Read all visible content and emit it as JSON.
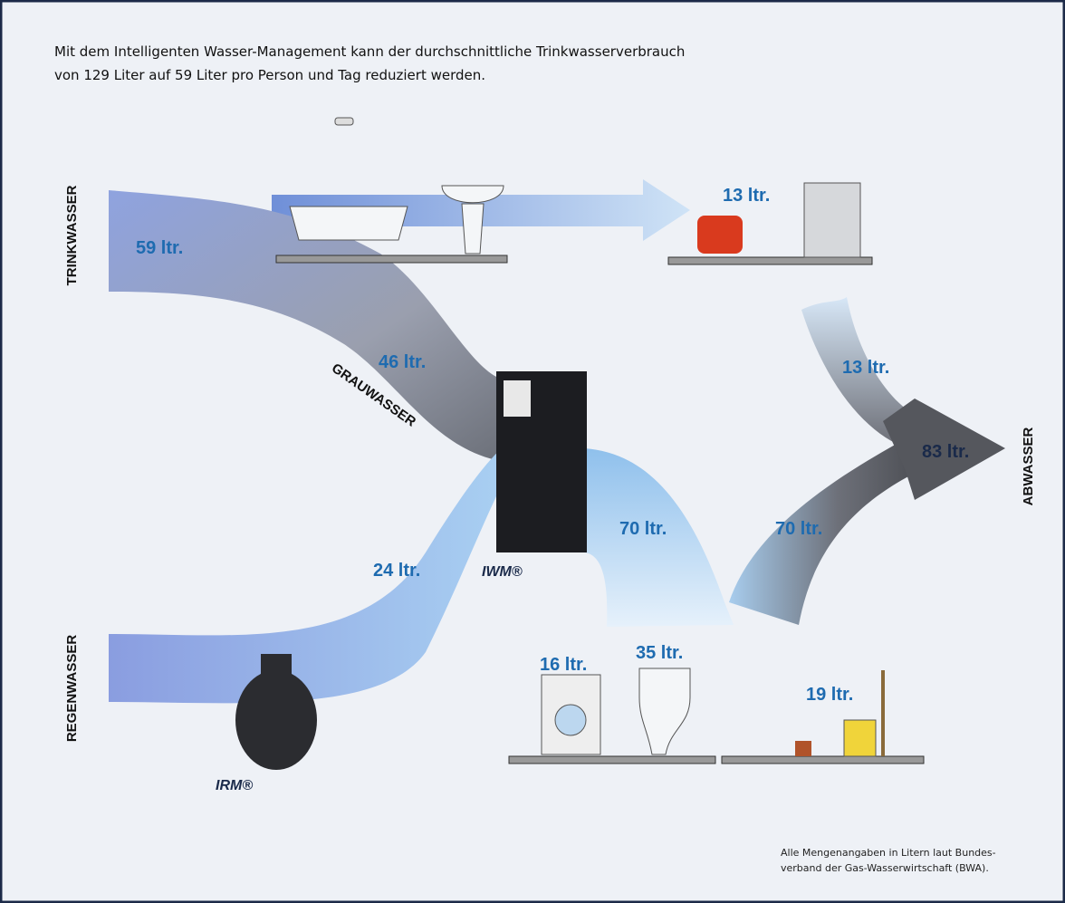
{
  "header": {
    "lines": [
      "Mit dem Intelligenten Wasser-Management kann der durchschnittliche Trinkwasserverbrauch",
      "von 129 Liter auf 59 Liter pro Person und Tag reduziert werden."
    ]
  },
  "side_labels": {
    "trinkwasser": "TRINKWASSER",
    "regenwasser": "REGENWASSER",
    "abwasser": "ABWASSER",
    "grauwasser": "GRAUWASSER"
  },
  "flow_labels": {
    "trink_in": "59 ltr.",
    "kitchen": "13 ltr.",
    "grau": "46 ltr.",
    "regen": "24 ltr.",
    "iwm_out": "70 ltr.",
    "to_abwasser": "70 ltr.",
    "kitchen_out": "13 ltr.",
    "abwasser": "83 ltr.",
    "washer": "16 ltr.",
    "toilet": "35 ltr.",
    "garden": "19 ltr."
  },
  "devices": {
    "iwm": "IWM®",
    "irm": "IRM®"
  },
  "footnote": {
    "lines": [
      "Alle Mengenangaben in Litern laut Bundes-",
      "verband der Gas-Wasserwirtschaft (BWA)."
    ]
  }
}
